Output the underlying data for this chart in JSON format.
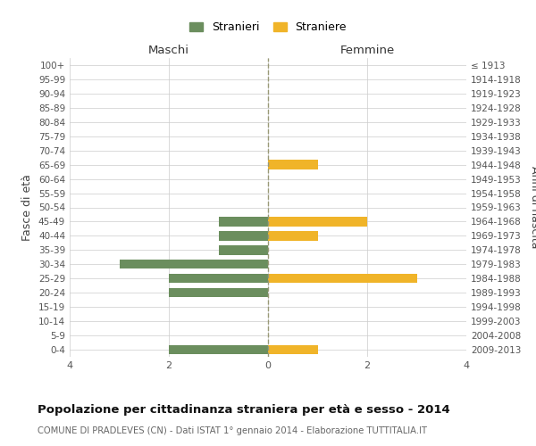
{
  "age_groups": [
    "0-4",
    "5-9",
    "10-14",
    "15-19",
    "20-24",
    "25-29",
    "30-34",
    "35-39",
    "40-44",
    "45-49",
    "50-54",
    "55-59",
    "60-64",
    "65-69",
    "70-74",
    "75-79",
    "80-84",
    "85-89",
    "90-94",
    "95-99",
    "100+"
  ],
  "birth_years": [
    "2009-2013",
    "2004-2008",
    "1999-2003",
    "1994-1998",
    "1989-1993",
    "1984-1988",
    "1979-1983",
    "1974-1978",
    "1969-1973",
    "1964-1968",
    "1959-1963",
    "1954-1958",
    "1949-1953",
    "1944-1948",
    "1939-1943",
    "1934-1938",
    "1929-1933",
    "1924-1928",
    "1919-1923",
    "1914-1918",
    "≤ 1913"
  ],
  "males": [
    2,
    0,
    0,
    0,
    2,
    2,
    3,
    1,
    1,
    1,
    0,
    0,
    0,
    0,
    0,
    0,
    0,
    0,
    0,
    0,
    0
  ],
  "females": [
    1,
    0,
    0,
    0,
    0,
    3,
    0,
    0,
    1,
    2,
    0,
    0,
    0,
    1,
    0,
    0,
    0,
    0,
    0,
    0,
    0
  ],
  "male_color": "#6b8e5e",
  "female_color": "#f0b429",
  "title": "Popolazione per cittadinanza straniera per età e sesso - 2014",
  "subtitle": "COMUNE DI PRADLEVES (CN) - Dati ISTAT 1° gennaio 2014 - Elaborazione TUTTITALIA.IT",
  "xlabel_left": "Maschi",
  "xlabel_right": "Femmine",
  "ylabel_left": "Fasce di età",
  "ylabel_right": "Anni di nascita",
  "legend_male": "Stranieri",
  "legend_female": "Straniere",
  "xlim": 4,
  "background_color": "#ffffff",
  "grid_color": "#cccccc"
}
